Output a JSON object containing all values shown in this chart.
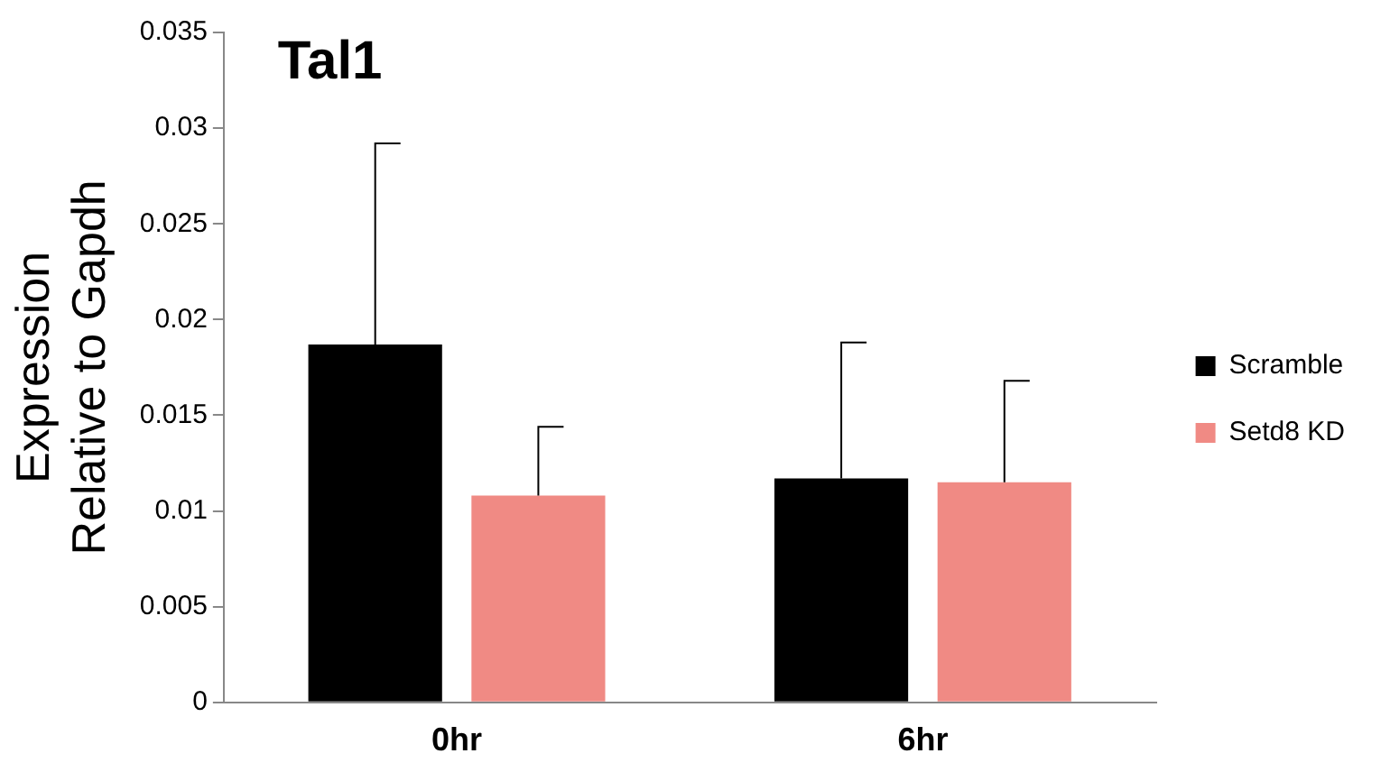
{
  "chart_data": {
    "type": "bar",
    "title": "Tal1",
    "ylabel": "Expression Relative to Gapdh",
    "categories": [
      "0hr",
      "6hr"
    ],
    "series": [
      {
        "name": "Scramble",
        "color": "#000000",
        "values": [
          0.0187,
          0.0117
        ],
        "errors": [
          [
            0.0187,
            0.0292
          ],
          [
            0.0117,
            0.0188
          ]
        ]
      },
      {
        "name": "Setd8 KD",
        "color": "#f08a84",
        "values": [
          0.0108,
          0.0115
        ],
        "errors": [
          [
            0.0108,
            0.0144
          ],
          [
            0.0115,
            0.0168
          ]
        ]
      }
    ],
    "ylim": [
      0,
      0.035
    ],
    "yticks": [
      0,
      0.005,
      0.01,
      0.015,
      0.02,
      0.025,
      0.03,
      0.035
    ],
    "grid": false,
    "legend": "right"
  }
}
